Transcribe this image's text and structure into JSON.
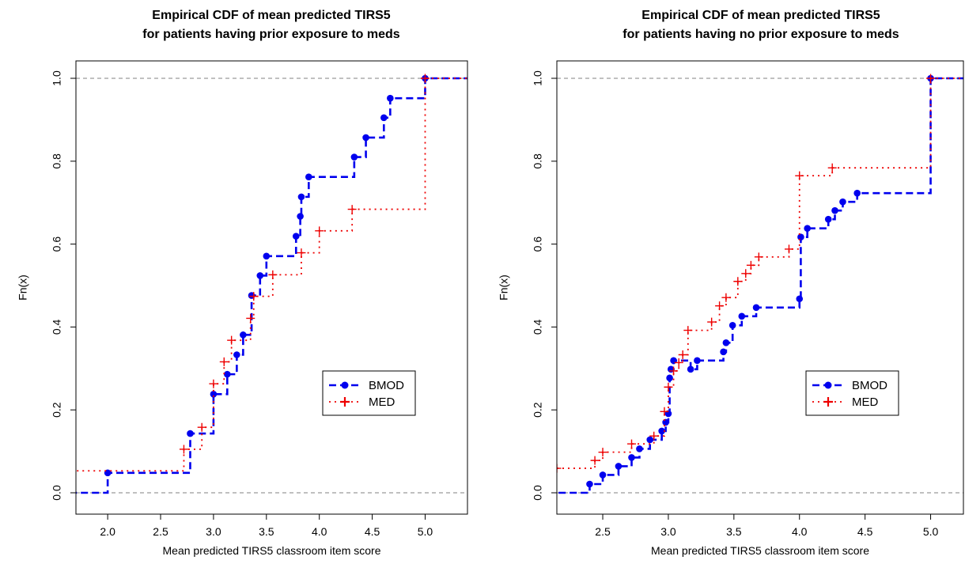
{
  "chart_data": [
    {
      "type": "line",
      "subtype": "ecdf-step",
      "title_lines": [
        "Empirical CDF of mean predicted TIRS5",
        "for patients having prior exposure to meds"
      ],
      "xlabel": "Mean predicted TIRS5 classroom item score",
      "ylabel": "Fn(x)",
      "xlim": [
        1.7,
        5.4
      ],
      "ylim": [
        0,
        1
      ],
      "xticks": [
        "2.0",
        "2.5",
        "3.0",
        "3.5",
        "4.0",
        "4.5",
        "5.0"
      ],
      "yticks": [
        "0.0",
        "0.2",
        "0.4",
        "0.6",
        "0.8",
        "1.0"
      ],
      "reference_lines": [
        0,
        1
      ],
      "legend_position": "lower-right",
      "series": [
        {
          "name": "BMOD",
          "color": "#0000ee",
          "line_style": "dashed",
          "marker": "filled-circle",
          "x": [
            2.0,
            2.78,
            3.0,
            3.13,
            3.22,
            3.28,
            3.36,
            3.44,
            3.5,
            3.78,
            3.82,
            3.83,
            3.9,
            4.33,
            4.44,
            4.61,
            4.67,
            5.0
          ],
          "y": [
            0.048,
            0.143,
            0.238,
            0.286,
            0.333,
            0.381,
            0.476,
            0.524,
            0.571,
            0.619,
            0.667,
            0.714,
            0.762,
            0.81,
            0.857,
            0.905,
            0.952,
            1.0
          ]
        },
        {
          "name": "MED",
          "color": "#ee0000",
          "line_style": "dotted",
          "marker": "plus",
          "x": [
            1.5,
            2.72,
            2.89,
            3.0,
            3.1,
            3.17,
            3.35,
            3.38,
            3.56,
            3.83,
            4.0,
            4.31,
            5.0
          ],
          "y": [
            0.053,
            0.105,
            0.158,
            0.263,
            0.316,
            0.368,
            0.421,
            0.474,
            0.526,
            0.579,
            0.632,
            0.684,
            1.0
          ]
        }
      ]
    },
    {
      "type": "line",
      "subtype": "ecdf-step",
      "title_lines": [
        "Empirical CDF  of mean predicted TIRS5",
        "for patients having no prior exposure to meds"
      ],
      "xlabel": "Mean predicted TIRS5 classroom item score",
      "ylabel": "Fn(x)",
      "xlim": [
        2.15,
        5.25
      ],
      "ylim": [
        0,
        1
      ],
      "xticks": [
        "2.5",
        "3.0",
        "3.5",
        "4.0",
        "4.5",
        "5.0"
      ],
      "yticks": [
        "0.0",
        "0.2",
        "0.4",
        "0.6",
        "0.8",
        "1.0"
      ],
      "reference_lines": [
        0,
        1
      ],
      "legend_position": "lower-right",
      "series": [
        {
          "name": "BMOD",
          "color": "#0000ee",
          "line_style": "dashed",
          "marker": "filled-circle",
          "x": [
            2.4,
            2.5,
            2.62,
            2.72,
            2.78,
            2.86,
            2.95,
            2.98,
            3.0,
            3.01,
            3.02,
            3.04,
            3.17,
            3.22,
            3.42,
            3.44,
            3.49,
            3.56,
            3.67,
            4.0,
            4.01,
            4.06,
            4.22,
            4.27,
            4.33,
            4.44,
            5.0
          ],
          "y": [
            0.021,
            0.043,
            0.064,
            0.085,
            0.106,
            0.128,
            0.149,
            0.17,
            0.191,
            0.277,
            0.298,
            0.319,
            0.298,
            0.319,
            0.34,
            0.362,
            0.404,
            0.426,
            0.447,
            0.468,
            0.617,
            0.638,
            0.66,
            0.681,
            0.702,
            0.723,
            1.0
          ]
        },
        {
          "name": "MED",
          "color": "#ee0000",
          "line_style": "dotted",
          "marker": "plus",
          "x": [
            2.15,
            2.44,
            2.5,
            2.72,
            2.89,
            2.97,
            3.0,
            3.04,
            3.08,
            3.11,
            3.15,
            3.33,
            3.39,
            3.44,
            3.53,
            3.59,
            3.63,
            3.69,
            3.92,
            4.0,
            4.25,
            5.0
          ],
          "y": [
            0.059,
            0.078,
            0.098,
            0.118,
            0.137,
            0.196,
            0.255,
            0.294,
            0.314,
            0.333,
            0.392,
            0.412,
            0.451,
            0.471,
            0.51,
            0.529,
            0.549,
            0.569,
            0.588,
            0.765,
            0.784,
            1.0
          ]
        }
      ]
    }
  ]
}
